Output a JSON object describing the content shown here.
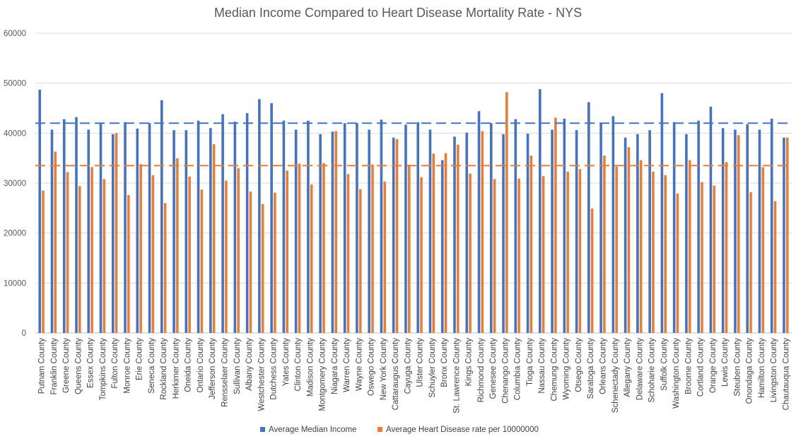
{
  "chart_data": {
    "type": "bar",
    "title": "Median Income Compared to Heart Disease Mortality Rate - NYS",
    "xlabel": "",
    "ylabel": "",
    "ylim": [
      0,
      60000
    ],
    "yticks": [
      "0",
      "10000",
      "20000",
      "30000",
      "40000",
      "50000",
      "60000"
    ],
    "grid": true,
    "legend_position": "bottom",
    "categories": [
      "Putnam County",
      "Franklin County",
      "Greene County",
      "Queens County",
      "Essex County",
      "Tompkins County",
      "Fulton County",
      "Monroe County",
      "Erie County",
      "Seneca County",
      "Rockland County",
      "Herkimer County",
      "Oneida County",
      "Ontario County",
      "Jefferson County",
      "Rensselaer County",
      "Sullivan County",
      "Albany County",
      "Westchester County",
      "Dutchess County",
      "Yates County",
      "Clinton County",
      "Madison County",
      "Montgomery County",
      "Niagara County",
      "Warren County",
      "Wayne County",
      "Oswego County",
      "New York County",
      "Cattaraugus County",
      "Cayuga County",
      "Ulster County",
      "Schuyler County",
      "Bronx County",
      "St. Lawrence County",
      "Kings County",
      "Richmond County",
      "Genesee County",
      "Chenango County",
      "Columbia County",
      "Tioga County",
      "Nassau County",
      "Chemung County",
      "Wyoming County",
      "Otsego County",
      "Saratoga County",
      "Orleans County",
      "Schenectady County",
      "Allegany County",
      "Delaware County",
      "Schoharie County",
      "Suffolk County",
      "Washington County",
      "Broome County",
      "Cortland County",
      "Orange County",
      "Lewis County",
      "Steuben County",
      "Onondaga County",
      "Hamilton County",
      "Livingston County",
      "Chautauqua County"
    ],
    "series": [
      {
        "name": "Average Median Income",
        "color": "#4472C4",
        "values": [
          48700,
          40700,
          42800,
          43200,
          40700,
          42000,
          39800,
          42200,
          40900,
          42000,
          46600,
          40600,
          40600,
          42500,
          41000,
          43800,
          42300,
          44000,
          46800,
          46000,
          42500,
          40700,
          42500,
          39800,
          40300,
          42000,
          42000,
          40700,
          42700,
          39100,
          41700,
          42200,
          40700,
          34600,
          39300,
          40100,
          44400,
          42000,
          39800,
          42800,
          39900,
          48800,
          40700,
          42900,
          40600,
          46200,
          42100,
          43400,
          39100,
          39800,
          40600,
          48000,
          42200,
          39800,
          42500,
          45300,
          41000,
          40700,
          41800,
          40700,
          42900,
          39100
        ]
      },
      {
        "name": "Average Heart Disease rate per 10000000",
        "color": "#ED7D31",
        "values": [
          28500,
          36300,
          32200,
          29400,
          33200,
          30800,
          40000,
          27600,
          33800,
          31600,
          26000,
          35000,
          31300,
          28700,
          37800,
          30500,
          33000,
          28300,
          25800,
          28100,
          32500,
          33900,
          29700,
          34000,
          40400,
          31800,
          28800,
          33700,
          30300,
          38800,
          33700,
          31200,
          35900,
          36000,
          37700,
          31900,
          40400,
          30800,
          48200,
          30900,
          35500,
          31400,
          43100,
          32300,
          32800,
          24900,
          35500,
          33300,
          37200,
          34600,
          32300,
          31600,
          27900,
          34600,
          30200,
          29500,
          34200,
          39600,
          28200,
          33200,
          26400,
          39100
        ]
      }
    ],
    "reference_lines": [
      {
        "series": "Average Median Income",
        "value": 42000,
        "style": "dashed",
        "color": "#4472C4"
      },
      {
        "series": "Average Heart Disease rate per 10000000",
        "value": 33500,
        "style": "dashed",
        "color": "#ED7D31"
      }
    ]
  }
}
